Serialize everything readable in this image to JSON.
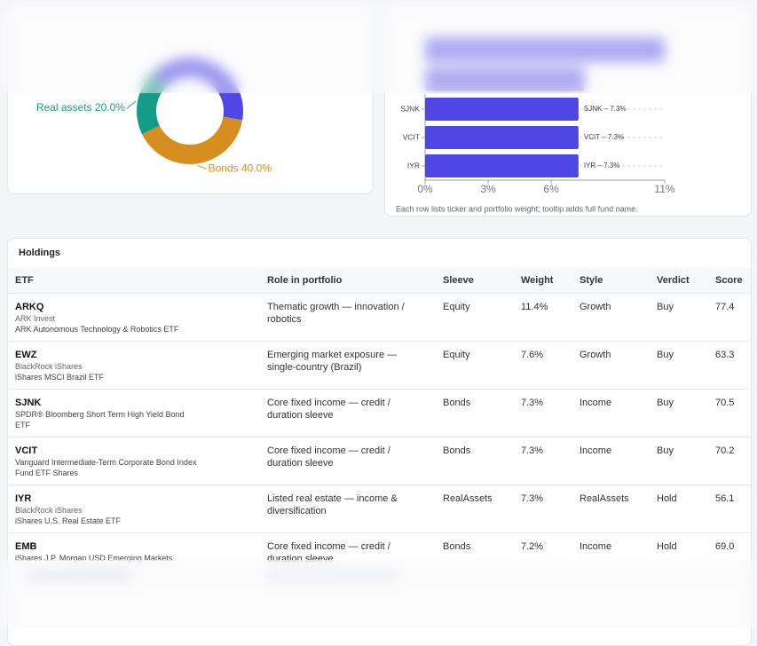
{
  "chart_data": [
    {
      "type": "donut",
      "categories": [
        "Real assets",
        "Bonds",
        null
      ],
      "values": [
        20,
        40,
        40
      ],
      "value_labels": [
        "20.0%",
        "40.0%",
        null
      ],
      "colors": [
        "#149c89",
        "#d68f1e",
        "#4f46e5"
      ]
    },
    {
      "type": "hbar",
      "categories": [
        "SJNK",
        "VCIT",
        "IYR"
      ],
      "values": [
        7.3,
        7.3,
        7.3
      ],
      "value_labels": [
        "SJNK – 7.3%",
        "VCIT – 7.3%",
        "IYR – 7.3%"
      ],
      "color": "#4f46e5",
      "xlim": [
        0,
        11.4
      ],
      "xticks": [
        {
          "value": 0,
          "label": "0%"
        },
        {
          "value": 3,
          "label": "3%"
        },
        {
          "value": 6,
          "label": "6%"
        },
        {
          "value": 11.4,
          "label": "11%"
        }
      ],
      "grid": true,
      "caption": "Each row lists ticker and portfolio weight; tooltip adds full fund name."
    }
  ],
  "table": {
    "title": "Holdings",
    "columns": [
      "ETF",
      "Role in portfolio",
      "Sleeve",
      "Weight",
      "Style",
      "Verdict",
      "Score"
    ],
    "rows": [
      {
        "ticker": "ARKQ",
        "issuer": "ARK Invest",
        "name": "ARK Autonomous Technology & Robotics ETF",
        "role": "Thematic growth — innovation / robotics",
        "sleeve": "Equity",
        "weight": "11.4%",
        "style": "Growth",
        "verdict": "Buy",
        "score": "77.4"
      },
      {
        "ticker": "EWZ",
        "issuer": "BlackRock iShares",
        "name": "iShares MSCI Brazil ETF",
        "role": "Emerging market exposure — single-country (Brazil)",
        "sleeve": "Equity",
        "weight": "7.6%",
        "style": "Growth",
        "verdict": "Buy",
        "score": "63.3"
      },
      {
        "ticker": "SJNK",
        "name": "SPDR® Bloomberg Short Term High Yield Bond ETF",
        "role": "Core fixed income — credit / duration sleeve",
        "sleeve": "Bonds",
        "weight": "7.3%",
        "style": "Income",
        "verdict": "Buy",
        "score": "70.5"
      },
      {
        "ticker": "VCIT",
        "name": "Vanguard Intermediate-Term Corporate Bond Index Fund ETF Shares",
        "role": "Core fixed income — credit / duration sleeve",
        "sleeve": "Bonds",
        "weight": "7.3%",
        "style": "Income",
        "verdict": "Buy",
        "score": "70.2"
      },
      {
        "ticker": "IYR",
        "issuer": "BlackRock iShares",
        "name": "iShares U.S. Real Estate ETF",
        "role": "Listed real estate — income & diversification",
        "sleeve": "RealAssets",
        "weight": "7.3%",
        "style": "RealAssets",
        "verdict": "Hold",
        "score": "56.1"
      },
      {
        "ticker": "EMB",
        "name": "iShares J.P. Morgan USD Emerging Markets",
        "role": "Core fixed income — credit / duration sleeve",
        "sleeve": "Bonds",
        "weight": "7.2%",
        "style": "Income",
        "verdict": "Hold",
        "score": "69.0"
      }
    ]
  }
}
